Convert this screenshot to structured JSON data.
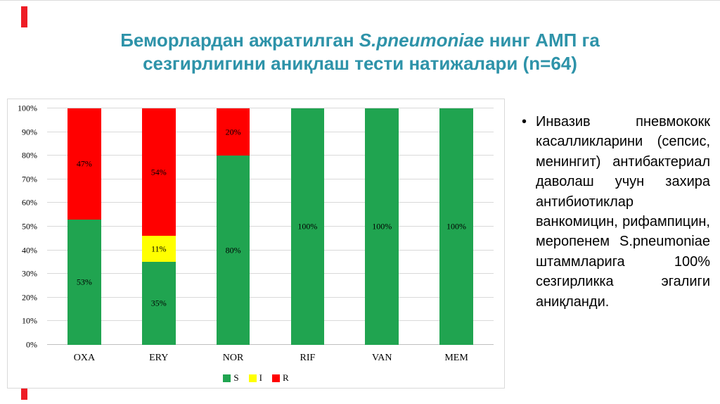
{
  "slide": {
    "title": {
      "prefix": "Беморлардан ажратилган ",
      "italic": "S.pneumoniae",
      "suffix": " нинг АМП га сезгирлигини аниқлаш тести натижалари (n=64)"
    },
    "title_color": "#2E93A9",
    "accent_color": "#EE1C25"
  },
  "chart_data": {
    "type": "bar",
    "stacked": true,
    "title": "",
    "xlabel": "",
    "ylabel": "",
    "categories": [
      "OXA",
      "ERY",
      "NOR",
      "RIF",
      "VAN",
      "MEM"
    ],
    "series": [
      {
        "name": "S",
        "color": "#20A450",
        "values": [
          53,
          35,
          80,
          100,
          100,
          100
        ]
      },
      {
        "name": "I",
        "color": "#FFFF00",
        "values": [
          0,
          11,
          0,
          0,
          0,
          0
        ]
      },
      {
        "name": "R",
        "color": "#FF0000",
        "values": [
          47,
          54,
          20,
          0,
          0,
          0
        ]
      }
    ],
    "ylim": [
      0,
      100
    ],
    "ytick_step": 10,
    "ytick_suffix": "%",
    "grid": true,
    "legend_position": "bottom"
  },
  "bullet": {
    "marker": "•",
    "text": "Инвазив пневмококк касалликларини (сепсис, менингит) антибактериал даволаш учун захира антибиотиклар ванкомицин, рифампицин, меропенем S.pneumoniae штаммларига 100% сезгирликка эгалиги аниқланди."
  }
}
